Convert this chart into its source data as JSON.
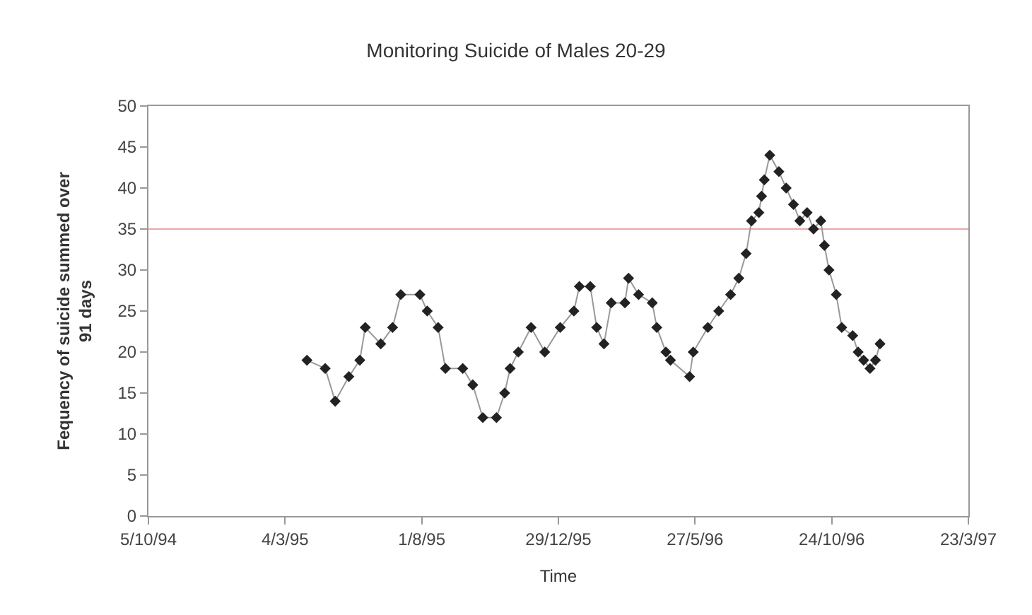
{
  "chart_data": {
    "type": "line",
    "title": "Monitoring Suicide of Males 20-29",
    "xlabel": "Time",
    "ylabel": "Fequency of suicide summed over\n91 days",
    "x": [
      "1995-03-28",
      "1995-04-17",
      "1995-04-28",
      "1995-05-13",
      "1995-05-25",
      "1995-05-31",
      "1995-06-17",
      "1995-06-30",
      "1995-07-09",
      "1995-07-30",
      "1995-08-07",
      "1995-08-19",
      "1995-08-27",
      "1995-09-15",
      "1995-09-26",
      "1995-10-07",
      "1995-10-22",
      "1995-10-31",
      "1995-11-06",
      "1995-11-15",
      "1995-11-29",
      "1995-12-14",
      "1995-12-31",
      "1996-01-15",
      "1996-01-21",
      "1996-02-02",
      "1996-02-09",
      "1996-02-17",
      "1996-02-25",
      "1996-03-11",
      "1996-03-15",
      "1996-03-26",
      "1996-04-10",
      "1996-04-15",
      "1996-04-25",
      "1996-04-30",
      "1996-05-21",
      "1996-05-25",
      "1996-06-10",
      "1996-06-22",
      "1996-07-05",
      "1996-07-14",
      "1996-07-22",
      "1996-07-28",
      "1996-08-05",
      "1996-08-08",
      "1996-08-11",
      "1996-08-17",
      "1996-08-27",
      "1996-09-04",
      "1996-09-12",
      "1996-09-19",
      "1996-09-27",
      "1996-10-04",
      "1996-10-12",
      "1996-10-16",
      "1996-10-21",
      "1996-10-29",
      "1996-11-04",
      "1996-11-16",
      "1996-11-22",
      "1996-11-28",
      "1996-12-05",
      "1996-12-11",
      "1996-12-16"
    ],
    "series": [
      {
        "color": "#222222",
        "values": [
          19,
          18,
          14,
          17,
          19,
          23,
          21,
          23,
          27,
          27,
          25,
          23,
          18,
          18,
          16,
          12,
          12,
          15,
          18,
          20,
          23,
          20,
          23,
          25,
          28,
          28,
          23,
          21,
          26,
          26,
          29,
          27,
          26,
          23,
          20,
          19,
          17,
          20,
          23,
          25,
          27,
          29,
          32,
          36,
          37,
          39,
          41,
          44,
          42,
          40,
          38,
          36,
          37,
          35,
          36,
          33,
          30,
          27,
          23,
          22,
          20,
          19,
          18,
          19,
          21
        ]
      }
    ],
    "xlim": [
      "1994-10-05",
      "1997-03-23"
    ],
    "xticks": [
      {
        "value": "1994-10-05",
        "label": "5/10/94"
      },
      {
        "value": "1995-03-04",
        "label": "4/3/95"
      },
      {
        "value": "1995-08-01",
        "label": "1/8/95"
      },
      {
        "value": "1995-12-29",
        "label": "29/12/95"
      },
      {
        "value": "1996-05-27",
        "label": "27/5/96"
      },
      {
        "value": "1996-10-24",
        "label": "24/10/96"
      },
      {
        "value": "1997-03-23",
        "label": "23/3/97"
      }
    ],
    "ylim": [
      0,
      50
    ],
    "yticks": [
      0,
      5,
      10,
      15,
      20,
      25,
      30,
      35,
      40,
      45,
      50
    ],
    "ref_lines": [
      {
        "axis": "y",
        "value": 35,
        "color": "#e8a8a8"
      }
    ],
    "marker": "diamond",
    "line_style": "solid",
    "grid": false
  }
}
